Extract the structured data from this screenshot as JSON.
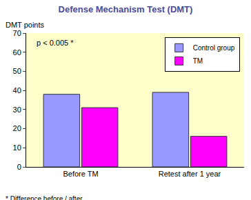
{
  "chart_data": {
    "type": "bar",
    "title": "Defense Mechanism Test (DMT)",
    "ylabel": "DMT points",
    "note": "p < 0.005 *",
    "footnote": "* Difference before / after",
    "categories": [
      "Before TM",
      "Retest after 1 year"
    ],
    "series": [
      {
        "name": "Control group",
        "color": "#9999ff",
        "values": [
          38,
          39
        ]
      },
      {
        "name": "TM",
        "color": "#ff00ff",
        "values": [
          31,
          16
        ]
      }
    ],
    "ylim": [
      0,
      70
    ],
    "yticks": [
      0,
      10,
      20,
      30,
      40,
      50,
      60,
      70
    ],
    "grid": false,
    "legend": "top right"
  }
}
